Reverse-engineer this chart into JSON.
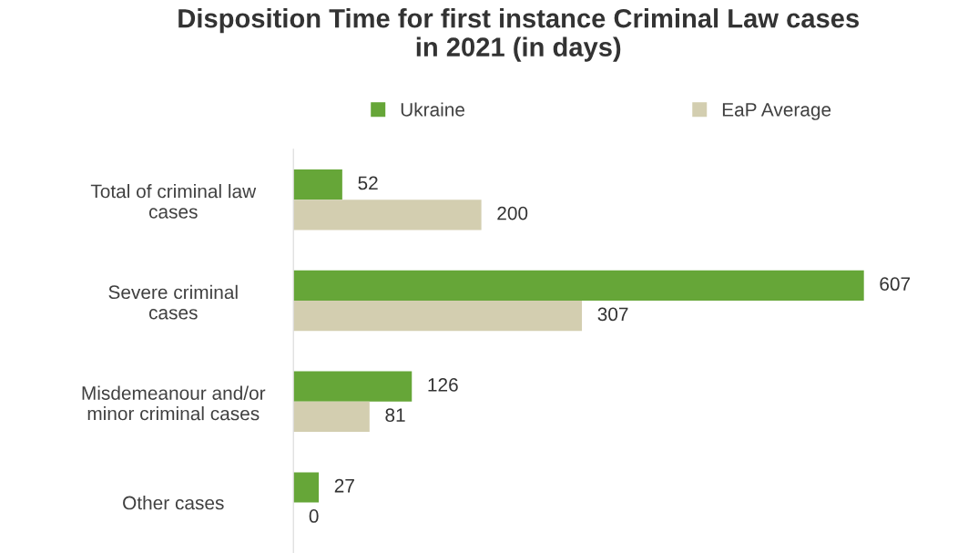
{
  "chart_data": {
    "type": "bar",
    "orientation": "horizontal",
    "title": "Disposition Time for first instance Criminal Law cases\nin 2021 (in days)",
    "categories": [
      "Total of criminal law\ncases",
      "Severe criminal\ncases",
      "Misdemeanour and/or\nminor criminal cases",
      "Other cases"
    ],
    "series": [
      {
        "name": "Ukraine",
        "color": "#66a638",
        "values": [
          52,
          607,
          126,
          27
        ]
      },
      {
        "name": "EaP Average",
        "color": "#d3ceb0",
        "values": [
          200,
          307,
          81,
          0
        ]
      }
    ],
    "data_labels": true,
    "grid": false,
    "legend": "top",
    "tick_labels": "y"
  }
}
